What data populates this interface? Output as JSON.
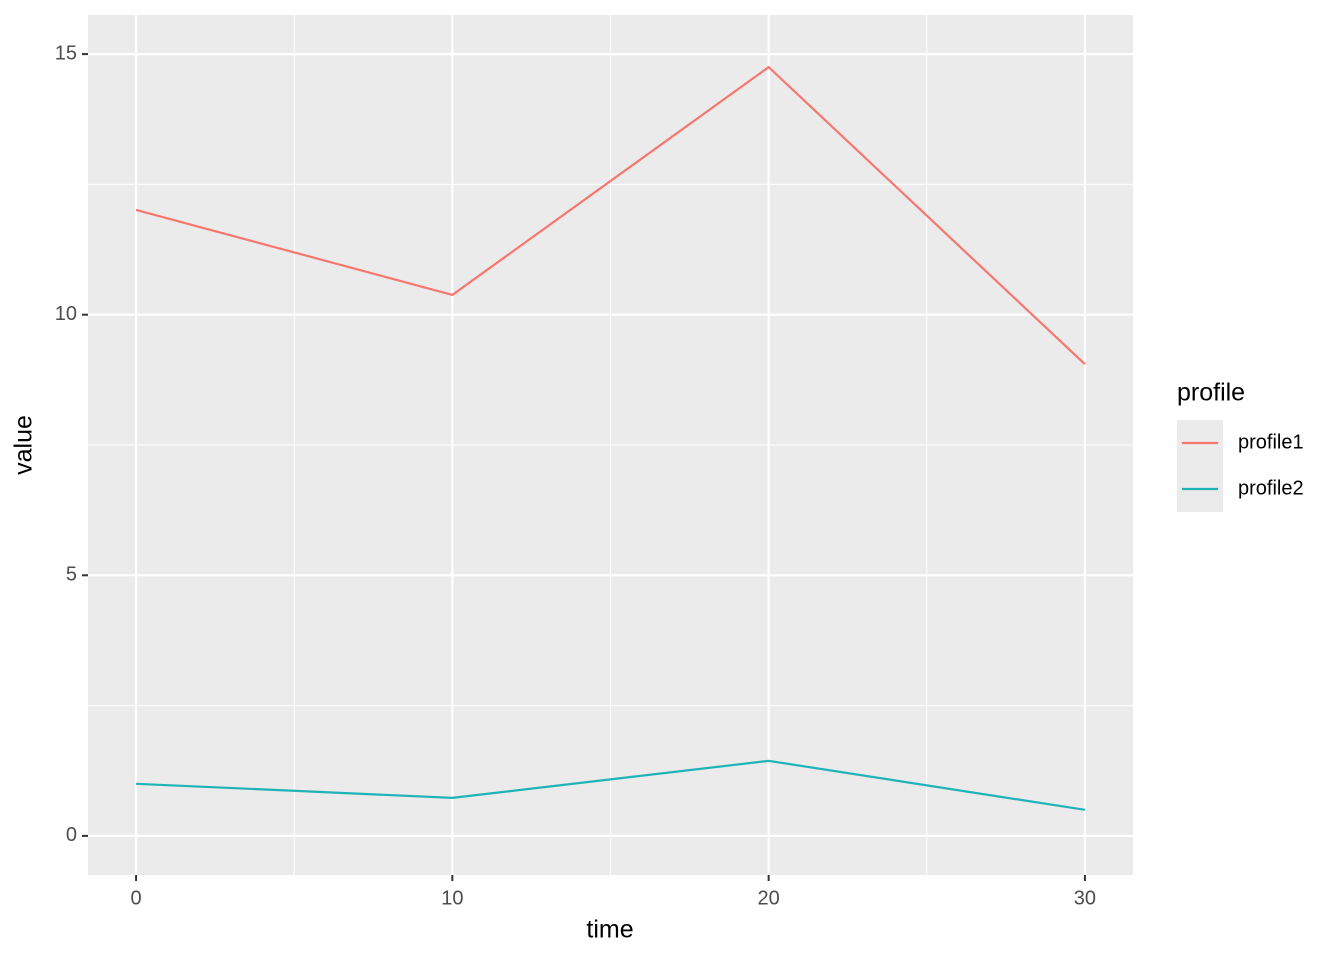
{
  "chart_data": {
    "type": "line",
    "x_label": "time",
    "y_label": "value",
    "x": [
      0,
      10,
      20,
      30
    ],
    "series": [
      {
        "name": "profile1",
        "color": "#F8766D",
        "values": [
          12.01,
          10.38,
          14.75,
          9.05
        ]
      },
      {
        "name": "profile2",
        "color": "#1FB3B7",
        "values": [
          1.0,
          0.73,
          1.44,
          0.5
        ]
      }
    ],
    "xlim": [
      -1.52,
      31.52
    ],
    "xticks": [
      0,
      10,
      20,
      30
    ],
    "ylim": [
      -0.75,
      15.75
    ],
    "yticks": [
      0,
      5,
      10,
      15
    ],
    "grid": true,
    "legend_title": "profile",
    "legend_position": "right"
  }
}
